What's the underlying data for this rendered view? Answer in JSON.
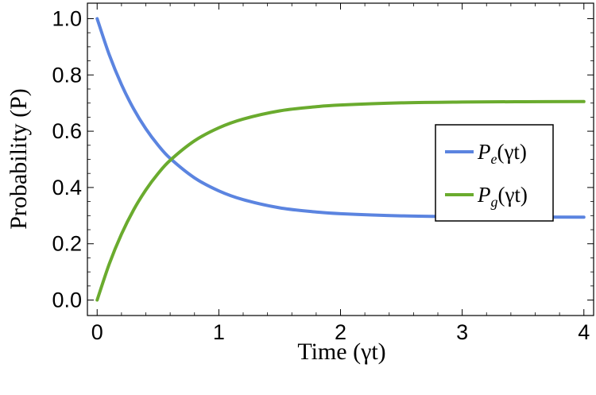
{
  "chart_data": {
    "type": "line",
    "xlabel": "Time (γt)",
    "ylabel": "Probability (P)",
    "xlim": [
      -0.08,
      4.08
    ],
    "ylim": [
      -0.055,
      1.055
    ],
    "x_ticks": [
      0,
      1,
      2,
      3,
      4
    ],
    "x_tick_labels": [
      "0",
      "1",
      "2",
      "3",
      "4"
    ],
    "y_ticks": [
      0.0,
      0.2,
      0.4,
      0.6,
      0.8,
      1.0
    ],
    "y_tick_labels": [
      "0.0",
      "0.2",
      "0.4",
      "0.6",
      "0.8",
      "1.0"
    ],
    "grid": false,
    "legend_position": "center-right",
    "series": [
      {
        "name": "Pe(γt)",
        "legend_main": "P",
        "legend_sub": "e",
        "legend_arg": "(γt)",
        "color": "#5b84e0",
        "x": [
          0,
          0.1,
          0.2,
          0.3,
          0.4,
          0.5,
          0.6,
          0.8,
          1.0,
          1.2,
          1.5,
          1.8,
          2.0,
          2.5,
          3.0,
          3.5,
          4.0
        ],
        "y": [
          1.0,
          0.8711,
          0.7657,
          0.6793,
          0.6086,
          0.5508,
          0.5034,
          0.4342,
          0.3879,
          0.3568,
          0.3277,
          0.3129,
          0.3069,
          0.2992,
          0.2963,
          0.2951,
          0.2947
        ]
      },
      {
        "name": "Pg(γt)",
        "legend_main": "P",
        "legend_sub": "g",
        "legend_arg": "(γt)",
        "color": "#6aab2e",
        "x": [
          0,
          0.1,
          0.2,
          0.3,
          0.4,
          0.5,
          0.6,
          0.8,
          1.0,
          1.2,
          1.5,
          1.8,
          2.0,
          2.5,
          3.0,
          3.5,
          4.0
        ],
        "y": [
          0.0,
          0.1289,
          0.2343,
          0.3207,
          0.3914,
          0.4492,
          0.4966,
          0.5658,
          0.6121,
          0.6432,
          0.6723,
          0.6871,
          0.6931,
          0.7008,
          0.7037,
          0.7049,
          0.7053
        ]
      }
    ]
  }
}
